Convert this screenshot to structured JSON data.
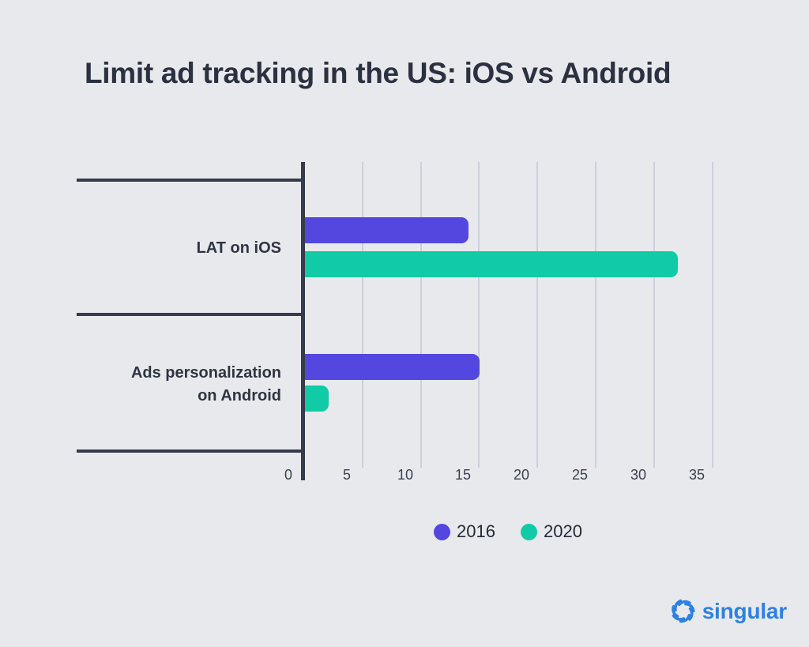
{
  "chart_data": {
    "type": "bar",
    "orientation": "horizontal",
    "title": "Limit ad tracking in the US: iOS vs Android",
    "categories": [
      "LAT on iOS",
      "Ads personalization on Android"
    ],
    "categories_display": [
      [
        "LAT on iOS"
      ],
      [
        "Ads personalization",
        "on Android"
      ]
    ],
    "series": [
      {
        "name": "2016",
        "color": "#5447e0",
        "values": [
          14,
          15
        ]
      },
      {
        "name": "2020",
        "color": "#10cba6",
        "values": [
          32,
          2
        ]
      }
    ],
    "xlabel": "",
    "ylabel": "",
    "xlim": [
      0,
      35
    ],
    "xticks": [
      0,
      5,
      10,
      15,
      20,
      25,
      30,
      35
    ],
    "grid": "vertical",
    "legend_position": "bottom"
  },
  "colors": {
    "background": "#e8e9ed",
    "axis_line": "#353b4a",
    "gridline": "#ccd0db",
    "title_text": "#2b3140",
    "category_text": "#2e3542",
    "tick_text": "#3a4150",
    "legend_text": "#232a38",
    "brand_blue": "#2e80e4"
  },
  "branding": {
    "logo_text": "singular",
    "logo_icon": "shutter-swirl-icon"
  }
}
